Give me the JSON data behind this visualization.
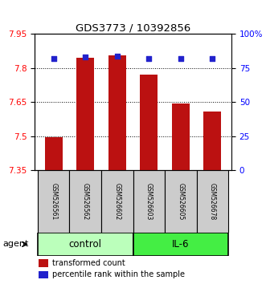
{
  "title": "GDS3773 / 10392856",
  "samples": [
    "GSM526561",
    "GSM526562",
    "GSM526602",
    "GSM526603",
    "GSM526605",
    "GSM526678"
  ],
  "bar_values": [
    7.497,
    7.845,
    7.855,
    7.77,
    7.645,
    7.61
  ],
  "bar_bottom": 7.35,
  "percentile_values": [
    82,
    83,
    84,
    82,
    82,
    82
  ],
  "bar_color": "#bb1111",
  "dot_color": "#2222cc",
  "ylim_left": [
    7.35,
    7.95
  ],
  "ylim_right": [
    0,
    100
  ],
  "yticks_left": [
    7.35,
    7.5,
    7.65,
    7.8,
    7.95
  ],
  "yticks_right": [
    0,
    25,
    50,
    75,
    100
  ],
  "ytick_labels_right": [
    "0",
    "25",
    "50",
    "75",
    "100%"
  ],
  "groups": [
    {
      "label": "control",
      "indices": [
        0,
        1,
        2
      ],
      "color": "#bbffbb"
    },
    {
      "label": "IL-6",
      "indices": [
        3,
        4,
        5
      ],
      "color": "#44ee44"
    }
  ],
  "agent_label": "agent",
  "legend_bar_label": "transformed count",
  "legend_dot_label": "percentile rank within the sample",
  "background_color": "#ffffff"
}
